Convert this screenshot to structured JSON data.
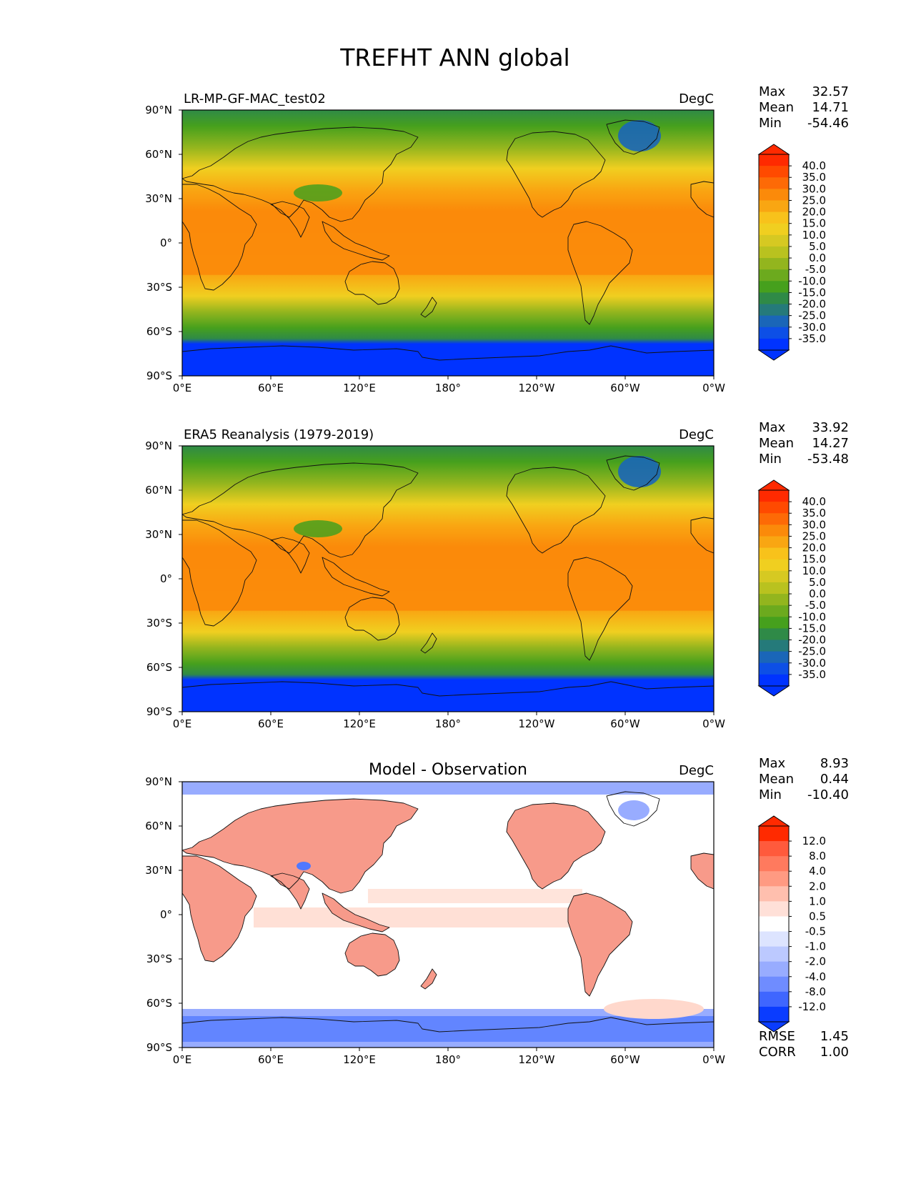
{
  "figure": {
    "title": "TREFHT ANN global"
  },
  "axes": {
    "x_ticks": [
      "0°E",
      "60°E",
      "120°E",
      "180°",
      "120°W",
      "60°W",
      "0°W"
    ],
    "y_ticks": [
      "90°N",
      "60°N",
      "30°N",
      "0°",
      "30°S",
      "60°S",
      "90°S"
    ]
  },
  "panels": [
    {
      "kind": "field",
      "left_title": "LR-MP-GF-MAC_test02",
      "center_title": "",
      "units": "DegC",
      "stats": [
        {
          "label": "Max",
          "value": "32.57"
        },
        {
          "label": "Mean",
          "value": "14.71"
        },
        {
          "label": "Min",
          "value": "-54.46"
        }
      ],
      "colorbar": {
        "labels": [
          "40.0",
          "35.0",
          "30.0",
          "25.0",
          "20.0",
          "15.0",
          "10.0",
          "5.0",
          "0.0",
          "-5.0",
          "-10.0",
          "-15.0",
          "-20.0",
          "-25.0",
          "-30.0",
          "-35.0"
        ],
        "colors": [
          "#ff2a00",
          "#ff4a00",
          "#fd6a06",
          "#fb8a0a",
          "#f9a612",
          "#f8c21b",
          "#f0cf20",
          "#d6c922",
          "#b9c21f",
          "#93b51e",
          "#6caa1e",
          "#46a01d",
          "#2f8a47",
          "#257a7a",
          "#1a66b8",
          "#0d4fe6",
          "#0033ff"
        ],
        "extend_max": "#ff2a00",
        "extend_min": "#0033ff"
      },
      "field_style": {
        "band_colors": [
          "#0033ff",
          "#1a66b8",
          "#2f8a47",
          "#46a01d",
          "#93b51e",
          "#f0cf20",
          "#f9a612",
          "#fb8a0a"
        ]
      },
      "footer_stats": []
    },
    {
      "kind": "field",
      "left_title": "ERA5 Reanalysis (1979-2019)",
      "center_title": "",
      "units": "DegC",
      "stats": [
        {
          "label": "Max",
          "value": "33.92"
        },
        {
          "label": "Mean",
          "value": "14.27"
        },
        {
          "label": "Min",
          "value": "-53.48"
        }
      ],
      "colorbar": {
        "labels": [
          "40.0",
          "35.0",
          "30.0",
          "25.0",
          "20.0",
          "15.0",
          "10.0",
          "5.0",
          "0.0",
          "-5.0",
          "-10.0",
          "-15.0",
          "-20.0",
          "-25.0",
          "-30.0",
          "-35.0"
        ],
        "colors": [
          "#ff2a00",
          "#ff4a00",
          "#fd6a06",
          "#fb8a0a",
          "#f9a612",
          "#f8c21b",
          "#f0cf20",
          "#d6c922",
          "#b9c21f",
          "#93b51e",
          "#6caa1e",
          "#46a01d",
          "#2f8a47",
          "#257a7a",
          "#1a66b8",
          "#0d4fe6",
          "#0033ff"
        ],
        "extend_max": "#ff2a00",
        "extend_min": "#0033ff"
      },
      "field_style": {
        "band_colors": [
          "#0033ff",
          "#1a66b8",
          "#2f8a47",
          "#46a01d",
          "#93b51e",
          "#f0cf20",
          "#f9a612",
          "#fb8a0a"
        ]
      },
      "footer_stats": []
    },
    {
      "kind": "diff",
      "left_title": "",
      "center_title": "Model - Observation",
      "units": "DegC",
      "stats": [
        {
          "label": "Max",
          "value": "8.93"
        },
        {
          "label": "Mean",
          "value": "0.44"
        },
        {
          "label": "Min",
          "value": "-10.40"
        }
      ],
      "colorbar": {
        "labels": [
          "12.0",
          "8.0",
          "4.0",
          "2.0",
          "1.0",
          "0.5",
          "-0.5",
          "-1.0",
          "-2.0",
          "-4.0",
          "-8.0",
          "-12.0"
        ],
        "colors": [
          "#ff2a00",
          "#ff5a3c",
          "#ff7a5e",
          "#ff9a82",
          "#ffbfae",
          "#ffe0d8",
          "#ffffff",
          "#dde4ff",
          "#bcc9ff",
          "#98acff",
          "#6f8cff",
          "#3f66ff",
          "#0a3cff"
        ],
        "extend_max": "#ff2a00",
        "extend_min": "#0a3cff"
      },
      "field_style": {
        "band_colors": [
          "#5078ff",
          "#98acff",
          "#ffffff",
          "#ffd8cc",
          "#f79a8a",
          "#f28070"
        ]
      },
      "footer_stats": [
        {
          "label": "RMSE",
          "value": "1.45"
        },
        {
          "label": "CORR",
          "value": "1.00"
        }
      ]
    }
  ]
}
